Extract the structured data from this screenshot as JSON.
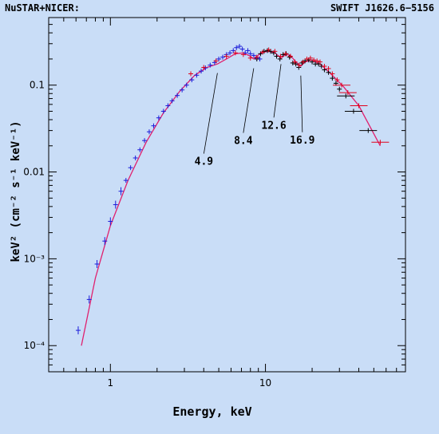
{
  "chart_data": {
    "type": "scatter",
    "title_left": "NuSTAR+NICER:",
    "title_right": "SWIFT J1626.6−5156",
    "xlabel": "Energy, keV",
    "ylabel": "keV² (cm⁻² s⁻¹ keV⁻¹)",
    "x_scale": "log",
    "y_scale": "log",
    "xlim": [
      0.4,
      80
    ],
    "ylim": [
      5e-05,
      0.6
    ],
    "x_tick_labels": [
      {
        "value": 1,
        "label": "1"
      },
      {
        "value": 10,
        "label": "10"
      }
    ],
    "y_tick_labels": [
      {
        "value": 0.0001,
        "label": "10⁻⁴"
      },
      {
        "value": 0.001,
        "label": "10⁻³"
      },
      {
        "value": 0.01,
        "label": "0.01"
      },
      {
        "value": 0.1,
        "label": "0.1"
      }
    ],
    "annotations": [
      {
        "label": "4.9",
        "x": 4.9,
        "y": 0.15
      },
      {
        "label": "8.4",
        "x": 8.4,
        "y": 0.17
      },
      {
        "label": "12.6",
        "x": 12.6,
        "y": 0.19
      },
      {
        "label": "16.9",
        "x": 16.9,
        "y": 0.14
      }
    ],
    "series": [
      {
        "color": "#1a1ad9",
        "x": [
          0.62,
          0.73,
          0.82,
          0.92,
          1.0,
          1.08,
          1.17,
          1.26,
          1.35,
          1.45,
          1.55,
          1.66,
          1.78,
          1.9,
          2.05,
          2.2,
          2.35,
          2.5,
          2.7,
          2.9,
          3.1,
          3.35,
          3.6,
          3.85,
          4.1,
          4.4,
          4.7,
          5.0,
          5.3,
          5.6,
          5.9,
          6.2,
          6.5,
          6.8,
          7.1,
          7.4,
          7.7,
          8.0,
          8.4,
          8.8,
          9.2
        ],
        "y": [
          0.00015,
          0.00034,
          0.00087,
          0.0016,
          0.0027,
          0.0042,
          0.006,
          0.008,
          0.0112,
          0.0145,
          0.018,
          0.023,
          0.029,
          0.034,
          0.042,
          0.05,
          0.058,
          0.066,
          0.076,
          0.088,
          0.1,
          0.115,
          0.13,
          0.145,
          0.158,
          0.17,
          0.182,
          0.2,
          0.21,
          0.225,
          0.235,
          0.25,
          0.27,
          0.28,
          0.26,
          0.235,
          0.25,
          0.23,
          0.22,
          0.205,
          0.2
        ]
      },
      {
        "color": "#000000",
        "x": [
          8.8,
          9.3,
          9.8,
          10.3,
          10.8,
          11.3,
          11.8,
          12.4,
          13.0,
          13.6,
          14.3,
          15.0,
          15.7,
          16.4,
          17.2,
          18.0,
          19.0,
          20.0,
          21.0,
          22.0,
          23.0,
          24.0,
          25.5,
          27.0,
          28.5,
          30.0,
          33.0,
          37.0,
          46.0
        ],
        "y": [
          0.2,
          0.23,
          0.245,
          0.25,
          0.245,
          0.235,
          0.215,
          0.2,
          0.225,
          0.23,
          0.21,
          0.18,
          0.175,
          0.16,
          0.18,
          0.19,
          0.195,
          0.185,
          0.175,
          0.175,
          0.165,
          0.15,
          0.14,
          0.12,
          0.105,
          0.09,
          0.075,
          0.05,
          0.03
        ]
      },
      {
        "color": "#e0001a",
        "x": [
          3.3,
          4.0,
          4.8,
          5.6,
          6.4,
          7.2,
          8.0,
          8.8,
          9.6,
          10.5,
          11.5,
          12.5,
          13.5,
          14.5,
          15.5,
          16.5,
          17.5,
          18.5,
          19.5,
          20.5,
          21.5,
          22.5,
          24.0,
          25.5,
          27.0,
          29.0,
          31.0,
          34.0,
          40.0,
          55.0
        ],
        "y": [
          0.135,
          0.16,
          0.19,
          0.215,
          0.235,
          0.225,
          0.205,
          0.21,
          0.24,
          0.255,
          0.245,
          0.215,
          0.23,
          0.215,
          0.185,
          0.17,
          0.185,
          0.2,
          0.205,
          0.195,
          0.19,
          0.185,
          0.165,
          0.155,
          0.135,
          0.115,
          0.1,
          0.082,
          0.058,
          0.022
        ]
      }
    ],
    "model": {
      "color": "#e0206e",
      "x": [
        0.65,
        0.8,
        1.0,
        1.3,
        1.7,
        2.2,
        2.8,
        3.5,
        4.2,
        4.9,
        5.6,
        6.4,
        7.2,
        8.0,
        8.4,
        8.8,
        9.6,
        10.5,
        11.5,
        12.6,
        13.5,
        14.5,
        15.5,
        16.9,
        18.0,
        20.0,
        23.0,
        27.0,
        32.0,
        40.0,
        55.0
      ],
      "y": [
        0.0001,
        0.0006,
        0.0024,
        0.008,
        0.022,
        0.048,
        0.085,
        0.13,
        0.16,
        0.175,
        0.2,
        0.23,
        0.235,
        0.215,
        0.2,
        0.215,
        0.24,
        0.245,
        0.235,
        0.205,
        0.225,
        0.22,
        0.19,
        0.165,
        0.185,
        0.195,
        0.17,
        0.13,
        0.095,
        0.058,
        0.02
      ]
    }
  }
}
